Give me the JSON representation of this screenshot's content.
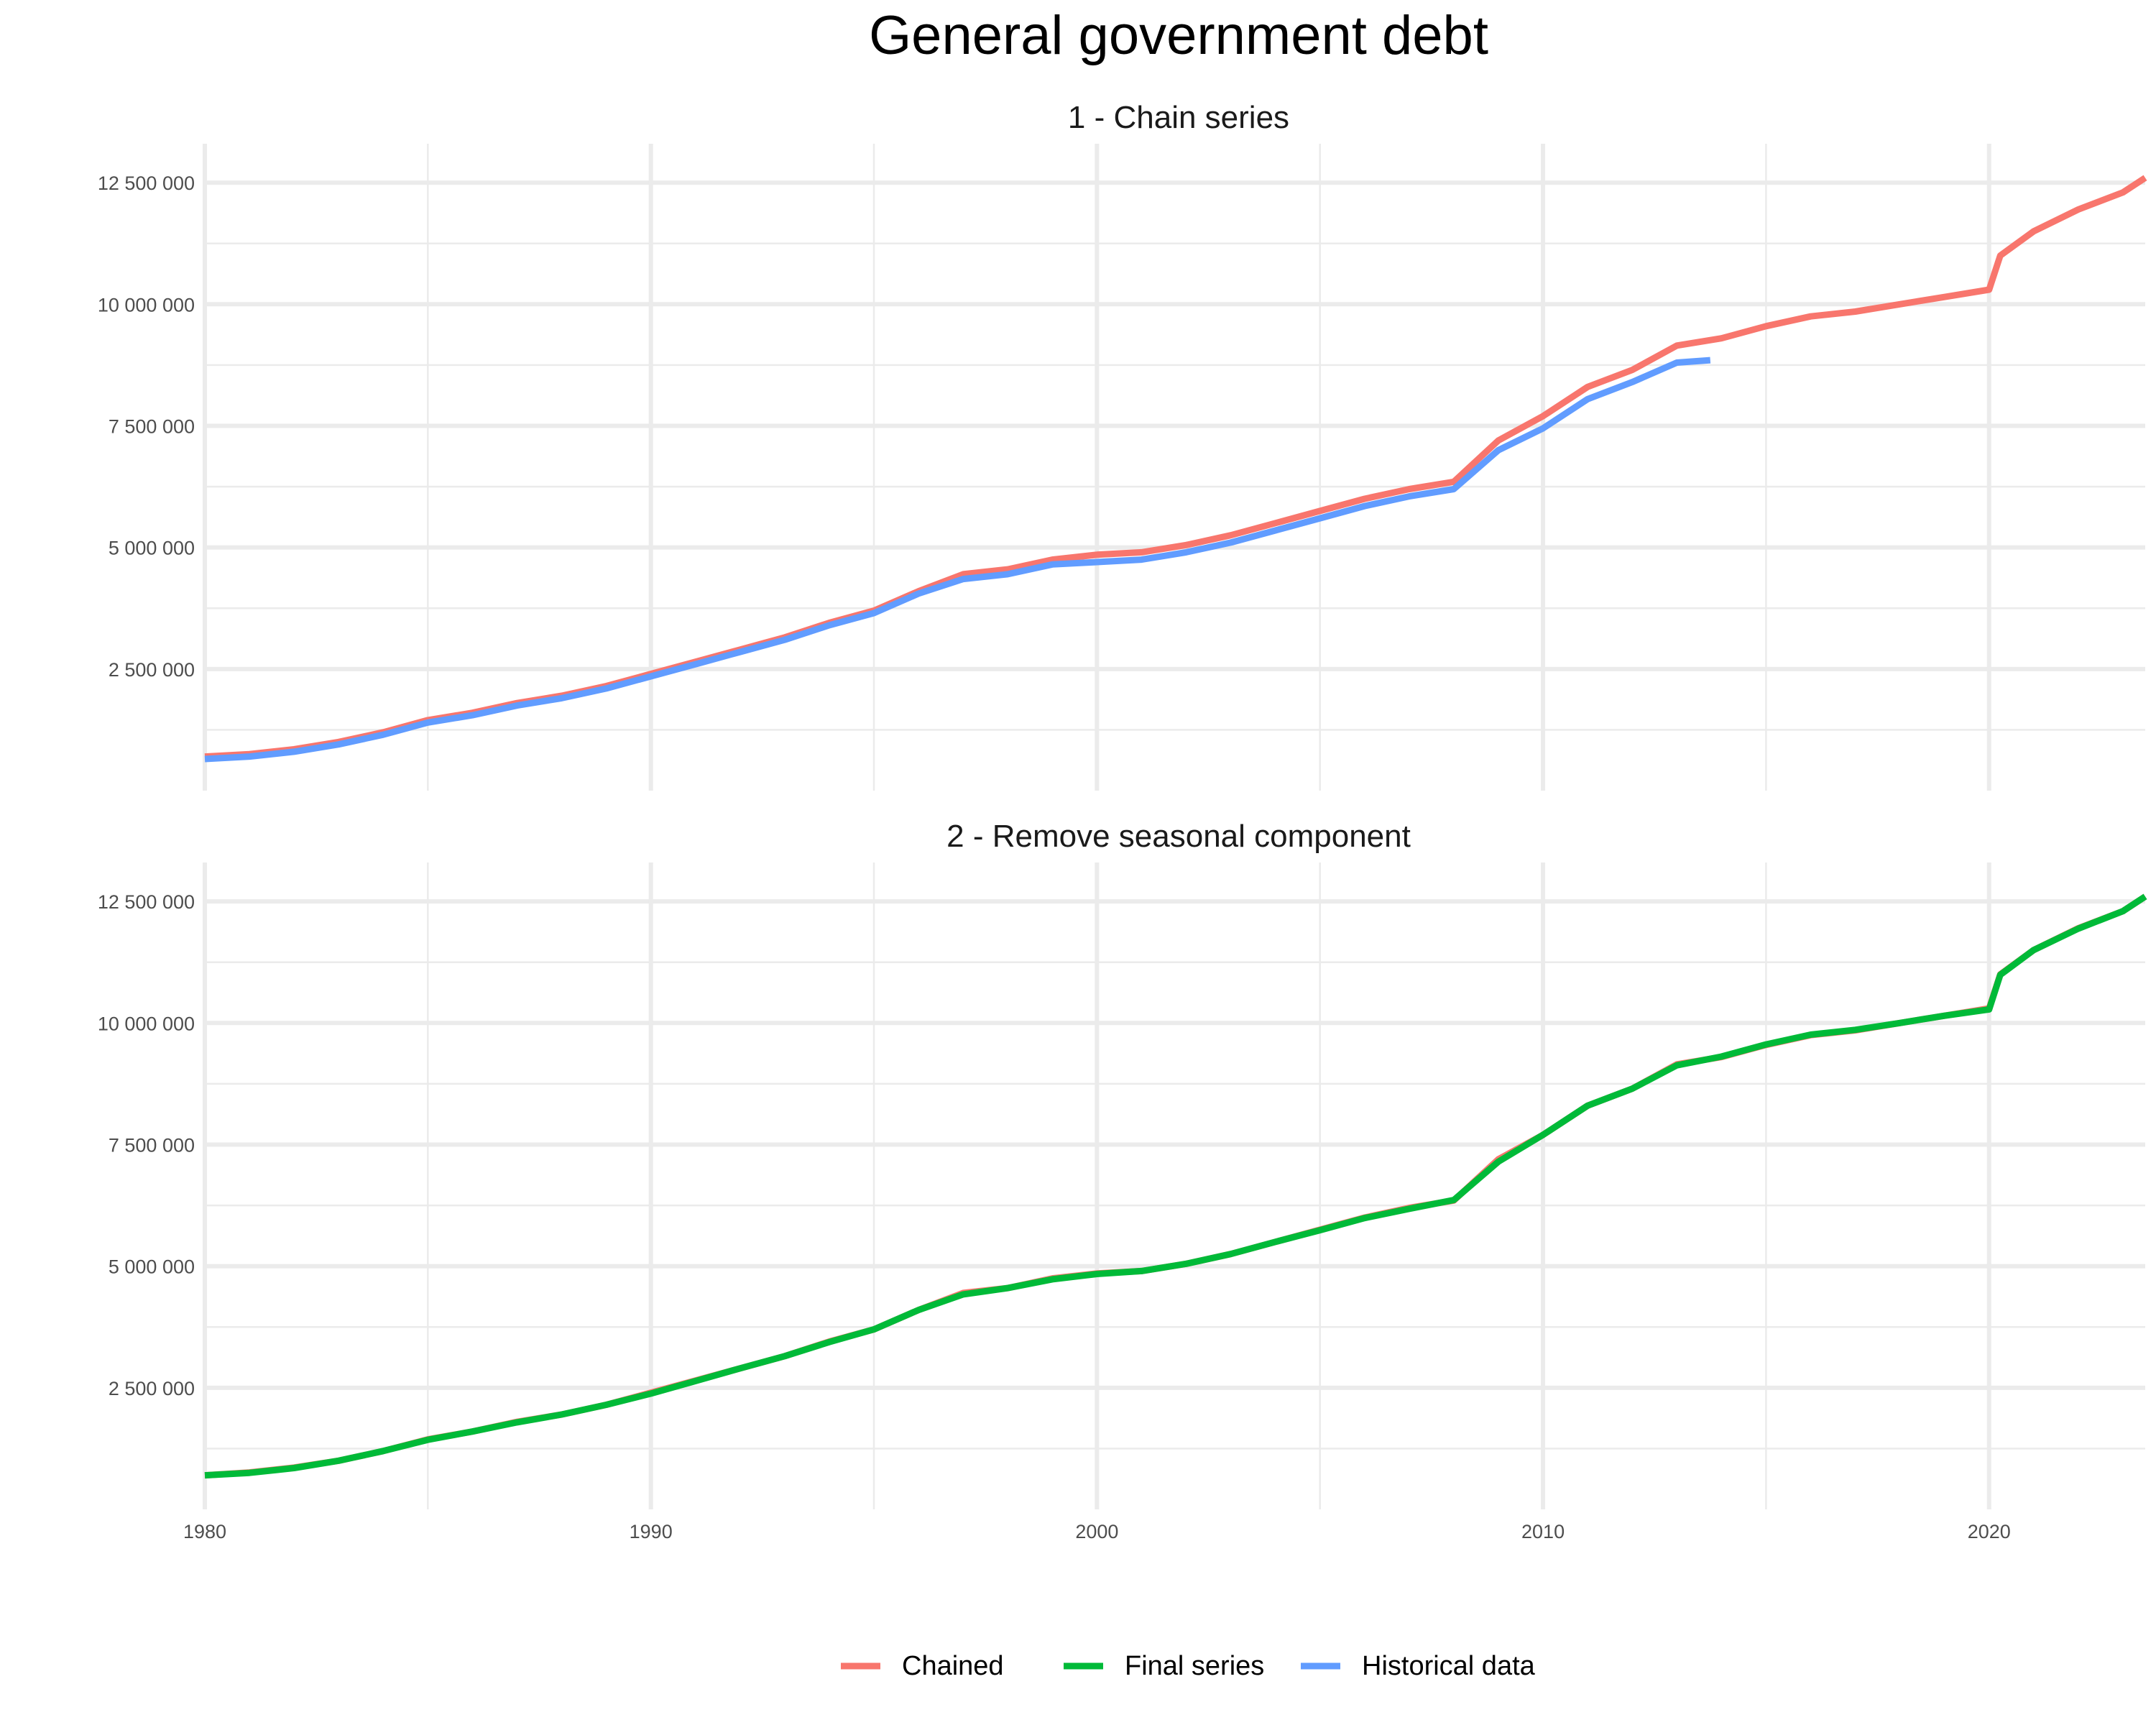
{
  "title": "General government debt",
  "colors": {
    "Chained": "#F8766D",
    "Final series": "#00BA38",
    "Historical data": "#619CFF"
  },
  "legend": {
    "position": "bottom",
    "entries": [
      "Chained",
      "Final series",
      "Historical data"
    ]
  },
  "chart_data": [
    {
      "type": "line",
      "title": "1 - Chain series",
      "xlabel": "",
      "ylabel": "",
      "xlim": [
        1980,
        2023.5
      ],
      "ylim": [
        0,
        13300000
      ],
      "x_ticks": [
        1980,
        1990,
        2000,
        2010,
        2020
      ],
      "x_tick_labels": [
        "",
        "",
        "",
        "",
        ""
      ],
      "y_ticks": [
        2500000,
        5000000,
        7500000,
        10000000,
        12500000
      ],
      "y_tick_labels": [
        "2 500 000",
        "5 000 000",
        "7 500 000",
        "10 000 000",
        "12 500 000"
      ],
      "grid": true,
      "series": [
        {
          "name": "Chained",
          "points": [
            [
              1980,
              700000
            ],
            [
              1981,
              750000
            ],
            [
              1982,
              850000
            ],
            [
              1983,
              1000000
            ],
            [
              1984,
              1200000
            ],
            [
              1985,
              1450000
            ],
            [
              1986,
              1600000
            ],
            [
              1987,
              1800000
            ],
            [
              1988,
              1950000
            ],
            [
              1989,
              2150000
            ],
            [
              1990,
              2400000
            ],
            [
              1991,
              2650000
            ],
            [
              1992,
              2900000
            ],
            [
              1993,
              3150000
            ],
            [
              1994,
              3450000
            ],
            [
              1995,
              3700000
            ],
            [
              1996,
              4100000
            ],
            [
              1997,
              4450000
            ],
            [
              1998,
              4550000
            ],
            [
              1999,
              4750000
            ],
            [
              2000,
              4850000
            ],
            [
              2001,
              4900000
            ],
            [
              2002,
              5050000
            ],
            [
              2003,
              5250000
            ],
            [
              2004,
              5500000
            ],
            [
              2005,
              5750000
            ],
            [
              2006,
              6000000
            ],
            [
              2007,
              6200000
            ],
            [
              2008,
              6350000
            ],
            [
              2009,
              7200000
            ],
            [
              2010,
              7700000
            ],
            [
              2011,
              8300000
            ],
            [
              2012,
              8650000
            ],
            [
              2013,
              9150000
            ],
            [
              2014,
              9300000
            ],
            [
              2015,
              9550000
            ],
            [
              2016,
              9750000
            ],
            [
              2017,
              9850000
            ],
            [
              2018,
              10000000
            ],
            [
              2019,
              10150000
            ],
            [
              2020,
              10300000
            ],
            [
              2020.25,
              11000000
            ],
            [
              2021,
              11500000
            ],
            [
              2022,
              11950000
            ],
            [
              2023,
              12300000
            ],
            [
              2023.5,
              12600000
            ]
          ]
        },
        {
          "name": "Historical data",
          "points": [
            [
              1980,
              650000
            ],
            [
              1981,
              700000
            ],
            [
              1982,
              800000
            ],
            [
              1983,
              950000
            ],
            [
              1984,
              1150000
            ],
            [
              1985,
              1400000
            ],
            [
              1986,
              1550000
            ],
            [
              1987,
              1750000
            ],
            [
              1988,
              1900000
            ],
            [
              1989,
              2100000
            ],
            [
              1990,
              2350000
            ],
            [
              1991,
              2600000
            ],
            [
              1992,
              2850000
            ],
            [
              1993,
              3100000
            ],
            [
              1994,
              3400000
            ],
            [
              1995,
              3650000
            ],
            [
              1996,
              4050000
            ],
            [
              1997,
              4350000
            ],
            [
              1998,
              4450000
            ],
            [
              1999,
              4650000
            ],
            [
              2000,
              4700000
            ],
            [
              2001,
              4750000
            ],
            [
              2002,
              4900000
            ],
            [
              2003,
              5100000
            ],
            [
              2004,
              5350000
            ],
            [
              2005,
              5600000
            ],
            [
              2006,
              5850000
            ],
            [
              2007,
              6050000
            ],
            [
              2008,
              6200000
            ],
            [
              2009,
              7000000
            ],
            [
              2010,
              7450000
            ],
            [
              2011,
              8050000
            ],
            [
              2012,
              8400000
            ],
            [
              2013,
              8800000
            ],
            [
              2013.75,
              8850000
            ]
          ]
        }
      ]
    },
    {
      "type": "line",
      "title": "2 - Remove seasonal component",
      "xlabel": "",
      "ylabel": "",
      "xlim": [
        1980,
        2023.5
      ],
      "ylim": [
        0,
        13300000
      ],
      "x_ticks": [
        1980,
        1990,
        2000,
        2010,
        2020
      ],
      "x_tick_labels": [
        "1980",
        "1990",
        "2000",
        "2010",
        "2020"
      ],
      "y_ticks": [
        2500000,
        5000000,
        7500000,
        10000000,
        12500000
      ],
      "y_tick_labels": [
        "2 500 000",
        "5 000 000",
        "7 500 000",
        "10 000 000",
        "12 500 000"
      ],
      "grid": true,
      "series": [
        {
          "name": "Chained",
          "points": [
            [
              1980,
              700000
            ],
            [
              1981,
              760000
            ],
            [
              1982,
              860000
            ],
            [
              1983,
              1000000
            ],
            [
              1984,
              1200000
            ],
            [
              1985,
              1440000
            ],
            [
              1986,
              1600000
            ],
            [
              1987,
              1800000
            ],
            [
              1988,
              1950000
            ],
            [
              1989,
              2150000
            ],
            [
              1990,
              2400000
            ],
            [
              1991,
              2650000
            ],
            [
              1992,
              2900000
            ],
            [
              1993,
              3150000
            ],
            [
              1994,
              3450000
            ],
            [
              1995,
              3700000
            ],
            [
              1996,
              4100000
            ],
            [
              1997,
              4450000
            ],
            [
              1998,
              4550000
            ],
            [
              1999,
              4750000
            ],
            [
              2000,
              4850000
            ],
            [
              2001,
              4900000
            ],
            [
              2002,
              5050000
            ],
            [
              2003,
              5250000
            ],
            [
              2004,
              5500000
            ],
            [
              2005,
              5750000
            ],
            [
              2006,
              6000000
            ],
            [
              2007,
              6200000
            ],
            [
              2008,
              6350000
            ],
            [
              2009,
              7200000
            ],
            [
              2010,
              7700000
            ],
            [
              2011,
              8300000
            ],
            [
              2012,
              8650000
            ],
            [
              2013,
              9150000
            ],
            [
              2014,
              9300000
            ],
            [
              2015,
              9550000
            ],
            [
              2016,
              9750000
            ],
            [
              2017,
              9850000
            ],
            [
              2018,
              10000000
            ],
            [
              2019,
              10150000
            ],
            [
              2020,
              10300000
            ],
            [
              2020.25,
              11000000
            ],
            [
              2021,
              11500000
            ],
            [
              2022,
              11950000
            ],
            [
              2023,
              12300000
            ],
            [
              2023.5,
              12600000
            ]
          ]
        },
        {
          "name": "Final series",
          "points": [
            [
              1980,
              700000
            ],
            [
              1981,
              750000
            ],
            [
              1982,
              850000
            ],
            [
              1983,
              1000000
            ],
            [
              1984,
              1200000
            ],
            [
              1985,
              1430000
            ],
            [
              1986,
              1600000
            ],
            [
              1987,
              1790000
            ],
            [
              1988,
              1950000
            ],
            [
              1989,
              2150000
            ],
            [
              1990,
              2380000
            ],
            [
              1991,
              2640000
            ],
            [
              1992,
              2900000
            ],
            [
              1993,
              3150000
            ],
            [
              1994,
              3440000
            ],
            [
              1995,
              3700000
            ],
            [
              1996,
              4100000
            ],
            [
              1997,
              4420000
            ],
            [
              1998,
              4550000
            ],
            [
              1999,
              4730000
            ],
            [
              2000,
              4840000
            ],
            [
              2001,
              4900000
            ],
            [
              2002,
              5050000
            ],
            [
              2003,
              5250000
            ],
            [
              2004,
              5500000
            ],
            [
              2005,
              5740000
            ],
            [
              2006,
              5990000
            ],
            [
              2007,
              6180000
            ],
            [
              2008,
              6360000
            ],
            [
              2009,
              7150000
            ],
            [
              2010,
              7700000
            ],
            [
              2011,
              8300000
            ],
            [
              2012,
              8650000
            ],
            [
              2013,
              9130000
            ],
            [
              2014,
              9310000
            ],
            [
              2015,
              9560000
            ],
            [
              2016,
              9760000
            ],
            [
              2017,
              9860000
            ],
            [
              2018,
              10000000
            ],
            [
              2019,
              10150000
            ],
            [
              2020,
              10280000
            ],
            [
              2020.25,
              10990000
            ],
            [
              2021,
              11500000
            ],
            [
              2022,
              11940000
            ],
            [
              2023,
              12300000
            ],
            [
              2023.5,
              12600000
            ]
          ]
        }
      ]
    }
  ]
}
